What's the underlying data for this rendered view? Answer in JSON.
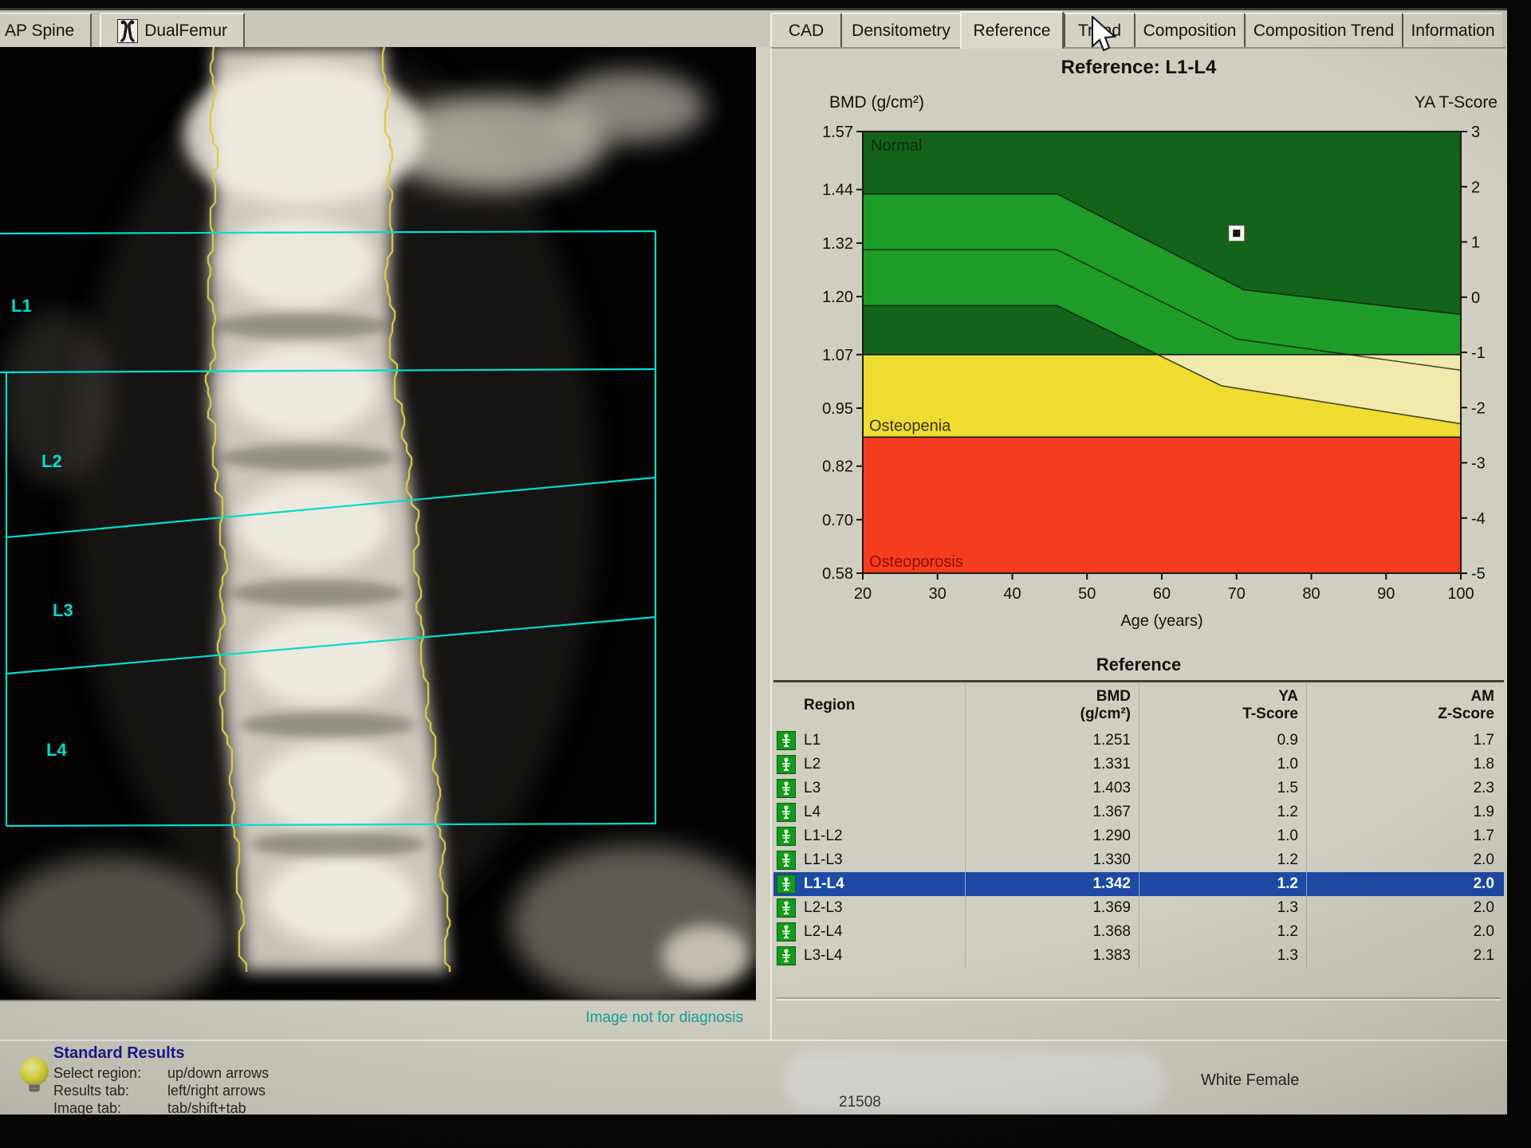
{
  "window": {
    "scan_tabs": [
      {
        "label": "AP Spine"
      },
      {
        "label": "DualFemur",
        "icon": "femur-icon"
      }
    ],
    "result_tabs": [
      {
        "label": "CAD"
      },
      {
        "label": "Densitometry"
      },
      {
        "label": "Reference",
        "active": true
      },
      {
        "label": "Trend"
      },
      {
        "label": "Composition"
      },
      {
        "label": "Composition Trend"
      },
      {
        "label": "Information"
      }
    ]
  },
  "image_panel": {
    "vertebra_labels": [
      "L1",
      "L2",
      "L3",
      "L4"
    ],
    "disclaimer": "Image not for diagnosis",
    "overlay_color": "#00ddd0",
    "contour_color": "#d4cc48"
  },
  "chart_data": {
    "type": "area",
    "title": "Reference: L1-L4",
    "ylabel": "BMD (g/cm²)",
    "y2label": "YA T-Score",
    "xlabel": "Age (years)",
    "xlim": [
      20,
      100
    ],
    "ylim": [
      0.58,
      1.57
    ],
    "y2lim": [
      -5,
      3
    ],
    "x_ticks": [
      20,
      30,
      40,
      50,
      60,
      70,
      80,
      90,
      100
    ],
    "y_ticks": [
      1.57,
      1.44,
      1.32,
      1.2,
      1.07,
      0.95,
      0.82,
      0.7,
      0.58
    ],
    "y2_ticks": [
      3,
      2,
      1,
      0,
      -1,
      -2,
      -3,
      -4,
      -5
    ],
    "grid": false,
    "zones": [
      {
        "label": "Normal",
        "from": 1.07,
        "to": 1.57,
        "color": "#14631a",
        "band_color": "#1e9c28",
        "label_color": "#0c2c10"
      },
      {
        "label": "Osteopenia",
        "from": 0.885,
        "to": 1.07,
        "color": "#efdc31",
        "band_color": "#f2e9ac",
        "label_color": "#3a3206"
      },
      {
        "label": "Osteoporosis",
        "from": 0.58,
        "to": 0.885,
        "color": "#f53c1e",
        "band_color": "#f53c1e",
        "label_color": "#8e100c"
      }
    ],
    "reference_band": {
      "upper": [
        [
          20,
          1.43
        ],
        [
          46,
          1.43
        ],
        [
          71,
          1.215
        ],
        [
          100,
          1.16
        ]
      ],
      "mean": [
        [
          20,
          1.305
        ],
        [
          46,
          1.305
        ],
        [
          70,
          1.105
        ],
        [
          100,
          1.035
        ]
      ],
      "lower": [
        [
          20,
          1.18
        ],
        [
          46,
          1.18
        ],
        [
          68,
          1.0
        ],
        [
          100,
          0.915
        ]
      ]
    },
    "patient_point": {
      "age": 70,
      "bmd": 1.342,
      "marker": "white-square"
    }
  },
  "results_table": {
    "heading": "Reference",
    "columns": [
      {
        "line1": "",
        "line2": "Region"
      },
      {
        "line1": "BMD",
        "line2": "(g/cm²)"
      },
      {
        "line1": "YA",
        "line2": "T-Score"
      },
      {
        "line1": "AM",
        "line2": "Z-Score"
      }
    ],
    "rows": [
      {
        "region": "L1",
        "bmd": "1.251",
        "t": "0.9",
        "z": "1.7",
        "selected": false
      },
      {
        "region": "L2",
        "bmd": "1.331",
        "t": "1.0",
        "z": "1.8",
        "selected": false
      },
      {
        "region": "L3",
        "bmd": "1.403",
        "t": "1.5",
        "z": "2.3",
        "selected": false
      },
      {
        "region": "L4",
        "bmd": "1.367",
        "t": "1.2",
        "z": "1.9",
        "selected": false
      },
      {
        "region": "L1-L2",
        "bmd": "1.290",
        "t": "1.0",
        "z": "1.7",
        "selected": false
      },
      {
        "region": "L1-L3",
        "bmd": "1.330",
        "t": "1.2",
        "z": "2.0",
        "selected": false
      },
      {
        "region": "L1-L4",
        "bmd": "1.342",
        "t": "1.2",
        "z": "2.0",
        "selected": true
      },
      {
        "region": "L2-L3",
        "bmd": "1.369",
        "t": "1.3",
        "z": "2.0",
        "selected": false
      },
      {
        "region": "L2-L4",
        "bmd": "1.368",
        "t": "1.2",
        "z": "2.0",
        "selected": false
      },
      {
        "region": "L3-L4",
        "bmd": "1.383",
        "t": "1.3",
        "z": "2.1",
        "selected": false
      }
    ],
    "selection_color": "#1c4aa5"
  },
  "status_bar": {
    "title": "Standard Results",
    "hints": [
      {
        "label": "Select region:",
        "value": "up/down arrows"
      },
      {
        "label": "Results tab:",
        "value": "left/right arrows"
      },
      {
        "label": "Image tab:",
        "value": "tab/shift+tab"
      }
    ],
    "patient_id": "21508",
    "demographic": "White Female"
  }
}
